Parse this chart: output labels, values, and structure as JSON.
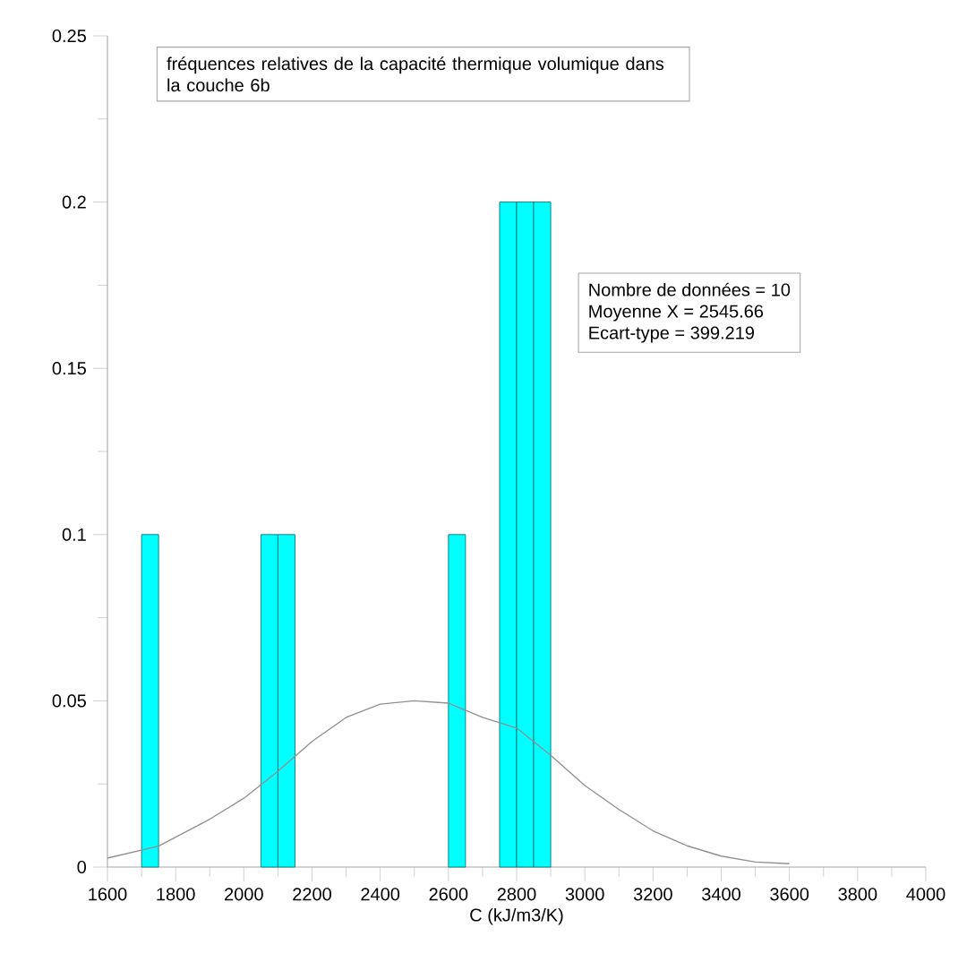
{
  "chart_data": {
    "type": "histogram",
    "title": "fréquences relatives de la capacité thermique volumique dans la couche 6b",
    "xlabel": "C (kJ/m3/K)",
    "bins": [
      1700,
      1750,
      1800,
      1850,
      1900,
      1950,
      2000,
      2050,
      2100,
      2150,
      2200,
      2250,
      2300,
      2350,
      2400,
      2450,
      2500,
      2550,
      2600,
      2650,
      2700,
      2750,
      2800,
      2850,
      2900
    ],
    "values": [
      0.1,
      0,
      0,
      0,
      0,
      0,
      0,
      0.1,
      0.1,
      0,
      0,
      0,
      0,
      0,
      0,
      0,
      0,
      0,
      0.1,
      0,
      0,
      0.2,
      0.2,
      0.2
    ],
    "color": "#00ffff",
    "series": [
      {
        "type": "line",
        "color": "#909090",
        "x": [
          1600,
          1750,
          1900,
          2000,
          2100,
          2200,
          2300,
          2400,
          2500,
          2600,
          2700,
          2800,
          2900,
          3000,
          3100,
          3200,
          3300,
          3400,
          3500,
          3600
        ],
        "values": [
          0.0027,
          0.0063,
          0.0144,
          0.0207,
          0.0288,
          0.0378,
          0.045,
          0.049,
          0.05,
          0.0493,
          0.045,
          0.0418,
          0.0336,
          0.0245,
          0.0173,
          0.0109,
          0.0064,
          0.0033,
          0.0015,
          0.001
        ]
      }
    ],
    "annotations": [
      "Nombre de données = 10",
      "Moyenne X = 2545.66",
      "Ecart-type = 399.219"
    ],
    "xlim": [
      1600,
      4000
    ],
    "ylim": [
      0,
      0.25
    ],
    "xticks": [
      1600,
      1800,
      2000,
      2200,
      2400,
      2600,
      2800,
      3000,
      3200,
      3400,
      3600,
      3800,
      4000
    ],
    "yticks": [
      0,
      0.05,
      0.1,
      0.15,
      0.2,
      0.25
    ],
    "grid": false
  }
}
